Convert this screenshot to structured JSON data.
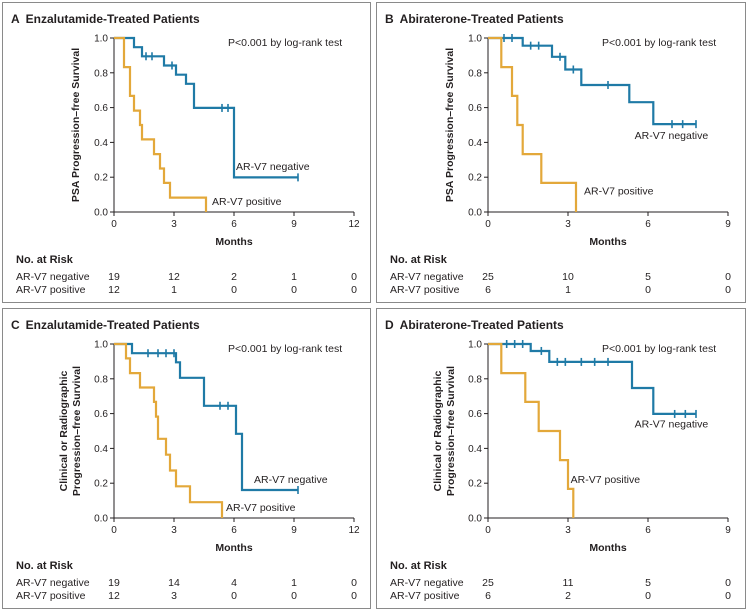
{
  "colors": {
    "negative": "#1f7aa6",
    "positive": "#e3a83a",
    "axis": "#231f20"
  },
  "risk_header": "No. at Risk",
  "chart_data": [
    {
      "id": "A",
      "type": "line",
      "step": true,
      "letter": "A",
      "title": "Enzalutamide-Treated Patients",
      "annotation": "P<0.001 by log-rank test",
      "ylabel": [
        "PSA Progression–free Survival"
      ],
      "xlabel": "Months",
      "xlim": [
        0,
        12
      ],
      "ylim": [
        0,
        1.0
      ],
      "xticks": [
        0,
        3,
        6,
        9,
        12
      ],
      "yticks": [
        "0.0",
        "0.2",
        "0.4",
        "0.6",
        "0.8",
        "1.0"
      ],
      "series": [
        {
          "name": "AR-V7 negative",
          "color_key": "negative",
          "points": [
            [
              0,
              1.0
            ],
            [
              1.0,
              1.0
            ],
            [
              1.0,
              0.947
            ],
            [
              1.4,
              0.947
            ],
            [
              1.4,
              0.895
            ],
            [
              2.5,
              0.895
            ],
            [
              2.5,
              0.842
            ],
            [
              3.1,
              0.842
            ],
            [
              3.1,
              0.789
            ],
            [
              3.6,
              0.789
            ],
            [
              3.6,
              0.737
            ],
            [
              4.0,
              0.737
            ],
            [
              4.0,
              0.598
            ],
            [
              6.0,
              0.598
            ],
            [
              6.0,
              0.199
            ],
            [
              9.2,
              0.199
            ]
          ],
          "censors": [
            [
              1.6,
              0.895
            ],
            [
              1.9,
              0.895
            ],
            [
              2.9,
              0.842
            ],
            [
              5.4,
              0.598
            ],
            [
              5.7,
              0.598
            ],
            [
              9.2,
              0.199
            ]
          ],
          "label": "AR-V7 negative",
          "label_at": [
            6.1,
            0.24
          ]
        },
        {
          "name": "AR-V7 positive",
          "color_key": "positive",
          "points": [
            [
              0,
              1.0
            ],
            [
              0.5,
              1.0
            ],
            [
              0.5,
              0.833
            ],
            [
              0.8,
              0.833
            ],
            [
              0.8,
              0.667
            ],
            [
              1.0,
              0.667
            ],
            [
              1.0,
              0.583
            ],
            [
              1.3,
              0.583
            ],
            [
              1.3,
              0.5
            ],
            [
              1.4,
              0.5
            ],
            [
              1.4,
              0.417
            ],
            [
              2.0,
              0.417
            ],
            [
              2.0,
              0.333
            ],
            [
              2.3,
              0.333
            ],
            [
              2.3,
              0.25
            ],
            [
              2.5,
              0.25
            ],
            [
              2.5,
              0.167
            ],
            [
              2.8,
              0.167
            ],
            [
              2.8,
              0.083
            ],
            [
              4.6,
              0.083
            ],
            [
              4.6,
              0.0
            ]
          ],
          "censors": [],
          "label": "AR-V7 positive",
          "label_at": [
            4.9,
            0.04
          ]
        }
      ],
      "risk_times": [
        0,
        3,
        6,
        9,
        12
      ],
      "risk_rows": [
        {
          "label": "AR-V7 negative",
          "values": [
            "19",
            "12",
            "2",
            "1",
            "0"
          ]
        },
        {
          "label": "AR-V7 positive",
          "values": [
            "12",
            "1",
            "0",
            "0",
            "0"
          ]
        }
      ]
    },
    {
      "id": "B",
      "type": "line",
      "step": true,
      "letter": "B",
      "title": "Abiraterone-Treated Patients",
      "annotation": "P<0.001 by log-rank test",
      "ylabel": [
        "PSA Progression–free Survival"
      ],
      "xlabel": "Months",
      "xlim": [
        0,
        9
      ],
      "ylim": [
        0,
        1.0
      ],
      "xticks": [
        0,
        3,
        6,
        9
      ],
      "yticks": [
        "0.0",
        "0.2",
        "0.4",
        "0.6",
        "0.8",
        "1.0"
      ],
      "series": [
        {
          "name": "AR-V7 negative",
          "color_key": "negative",
          "points": [
            [
              0,
              1.0
            ],
            [
              1.3,
              1.0
            ],
            [
              1.3,
              0.956
            ],
            [
              2.4,
              0.956
            ],
            [
              2.4,
              0.892
            ],
            [
              2.9,
              0.892
            ],
            [
              2.9,
              0.819
            ],
            [
              3.5,
              0.819
            ],
            [
              3.5,
              0.73
            ],
            [
              5.3,
              0.73
            ],
            [
              5.3,
              0.631
            ],
            [
              6.2,
              0.631
            ],
            [
              6.2,
              0.505
            ],
            [
              7.8,
              0.505
            ]
          ],
          "censors": [
            [
              0.6,
              1.0
            ],
            [
              0.9,
              1.0
            ],
            [
              1.6,
              0.956
            ],
            [
              1.9,
              0.956
            ],
            [
              2.7,
              0.892
            ],
            [
              3.2,
              0.819
            ],
            [
              4.5,
              0.73
            ],
            [
              6.9,
              0.505
            ],
            [
              7.3,
              0.505
            ],
            [
              7.8,
              0.505
            ]
          ],
          "label": "AR-V7 negative",
          "label_at": [
            5.5,
            0.42
          ]
        },
        {
          "name": "AR-V7 positive",
          "color_key": "positive",
          "points": [
            [
              0,
              1.0
            ],
            [
              0.5,
              1.0
            ],
            [
              0.5,
              0.833
            ],
            [
              0.9,
              0.833
            ],
            [
              0.9,
              0.667
            ],
            [
              1.1,
              0.667
            ],
            [
              1.1,
              0.5
            ],
            [
              1.3,
              0.5
            ],
            [
              1.3,
              0.333
            ],
            [
              2.0,
              0.333
            ],
            [
              2.0,
              0.167
            ],
            [
              3.3,
              0.167
            ],
            [
              3.3,
              0.0
            ]
          ],
          "censors": [],
          "label": "AR-V7 positive",
          "label_at": [
            3.6,
            0.1
          ]
        }
      ],
      "risk_times": [
        0,
        3,
        6,
        9
      ],
      "risk_rows": [
        {
          "label": "AR-V7 negative",
          "values": [
            "25",
            "10",
            "5",
            "0"
          ]
        },
        {
          "label": "AR-V7 positive",
          "values": [
            "6",
            "1",
            "0",
            "0"
          ]
        }
      ]
    },
    {
      "id": "C",
      "type": "line",
      "step": true,
      "letter": "C",
      "title": "Enzalutamide-Treated Patients",
      "annotation": "P<0.001 by log-rank test",
      "ylabel": [
        "Clinical or Radiographic",
        "Progression–free Survival"
      ],
      "xlabel": "Months",
      "xlim": [
        0,
        12
      ],
      "ylim": [
        0,
        1.0
      ],
      "xticks": [
        0,
        3,
        6,
        9,
        12
      ],
      "yticks": [
        "0.0",
        "0.2",
        "0.4",
        "0.6",
        "0.8",
        "1.0"
      ],
      "series": [
        {
          "name": "AR-V7 negative",
          "color_key": "negative",
          "points": [
            [
              0,
              1.0
            ],
            [
              0.9,
              1.0
            ],
            [
              0.9,
              0.947
            ],
            [
              3.1,
              0.947
            ],
            [
              3.1,
              0.895
            ],
            [
              3.3,
              0.895
            ],
            [
              3.3,
              0.806
            ],
            [
              4.5,
              0.806
            ],
            [
              4.5,
              0.645
            ],
            [
              6.1,
              0.645
            ],
            [
              6.1,
              0.484
            ],
            [
              6.4,
              0.484
            ],
            [
              6.4,
              0.161
            ],
            [
              9.2,
              0.161
            ]
          ],
          "censors": [
            [
              1.7,
              0.947
            ],
            [
              2.2,
              0.947
            ],
            [
              2.6,
              0.947
            ],
            [
              3.0,
              0.947
            ],
            [
              5.3,
              0.645
            ],
            [
              5.7,
              0.645
            ],
            [
              9.2,
              0.161
            ]
          ],
          "label": "AR-V7 negative",
          "label_at": [
            7.0,
            0.2
          ]
        },
        {
          "name": "AR-V7 positive",
          "color_key": "positive",
          "points": [
            [
              0,
              1.0
            ],
            [
              0.6,
              1.0
            ],
            [
              0.6,
              0.917
            ],
            [
              0.8,
              0.917
            ],
            [
              0.8,
              0.833
            ],
            [
              1.3,
              0.833
            ],
            [
              1.3,
              0.75
            ],
            [
              2.0,
              0.75
            ],
            [
              2.0,
              0.667
            ],
            [
              2.1,
              0.667
            ],
            [
              2.1,
              0.583
            ],
            [
              2.2,
              0.583
            ],
            [
              2.2,
              0.455
            ],
            [
              2.6,
              0.455
            ],
            [
              2.6,
              0.364
            ],
            [
              2.8,
              0.364
            ],
            [
              2.8,
              0.273
            ],
            [
              3.1,
              0.273
            ],
            [
              3.1,
              0.182
            ],
            [
              3.8,
              0.182
            ],
            [
              3.8,
              0.091
            ],
            [
              5.4,
              0.091
            ],
            [
              5.4,
              0.0
            ]
          ],
          "censors": [],
          "label": "AR-V7 positive",
          "label_at": [
            5.6,
            0.04
          ]
        }
      ],
      "risk_times": [
        0,
        3,
        6,
        9,
        12
      ],
      "risk_rows": [
        {
          "label": "AR-V7 negative",
          "values": [
            "19",
            "14",
            "4",
            "1",
            "0"
          ]
        },
        {
          "label": "AR-V7 positive",
          "values": [
            "12",
            "3",
            "0",
            "0",
            "0"
          ]
        }
      ]
    },
    {
      "id": "D",
      "type": "line",
      "step": true,
      "letter": "D",
      "title": "Abiraterone-Treated Patients",
      "annotation": "P<0.001 by log-rank test",
      "ylabel": [
        "Clinical or Radiographic",
        "Progression–free Survival"
      ],
      "xlabel": "Months",
      "xlim": [
        0,
        9
      ],
      "ylim": [
        0,
        1.0
      ],
      "xticks": [
        0,
        3,
        6,
        9
      ],
      "yticks": [
        "0.0",
        "0.2",
        "0.4",
        "0.6",
        "0.8",
        "1.0"
      ],
      "series": [
        {
          "name": "AR-V7 negative",
          "color_key": "negative",
          "points": [
            [
              0,
              1.0
            ],
            [
              1.6,
              1.0
            ],
            [
              1.6,
              0.96
            ],
            [
              2.3,
              0.96
            ],
            [
              2.3,
              0.897
            ],
            [
              5.4,
              0.897
            ],
            [
              5.4,
              0.747
            ],
            [
              6.2,
              0.747
            ],
            [
              6.2,
              0.598
            ],
            [
              7.8,
              0.598
            ]
          ],
          "censors": [
            [
              0.7,
              1.0
            ],
            [
              1.0,
              1.0
            ],
            [
              1.3,
              1.0
            ],
            [
              2.0,
              0.96
            ],
            [
              2.6,
              0.897
            ],
            [
              2.9,
              0.897
            ],
            [
              3.5,
              0.897
            ],
            [
              4.0,
              0.897
            ],
            [
              4.5,
              0.897
            ],
            [
              7.0,
              0.598
            ],
            [
              7.4,
              0.598
            ],
            [
              7.8,
              0.598
            ]
          ],
          "label": "AR-V7 negative",
          "label_at": [
            5.5,
            0.52
          ]
        },
        {
          "name": "AR-V7 positive",
          "color_key": "positive",
          "points": [
            [
              0,
              1.0
            ],
            [
              0.5,
              1.0
            ],
            [
              0.5,
              0.833
            ],
            [
              1.4,
              0.833
            ],
            [
              1.4,
              0.667
            ],
            [
              1.9,
              0.667
            ],
            [
              1.9,
              0.5
            ],
            [
              2.7,
              0.5
            ],
            [
              2.7,
              0.333
            ],
            [
              3.0,
              0.333
            ],
            [
              3.0,
              0.167
            ],
            [
              3.2,
              0.167
            ],
            [
              3.2,
              0.0
            ]
          ],
          "censors": [],
          "label": "AR-V7 positive",
          "label_at": [
            3.1,
            0.2
          ]
        }
      ],
      "risk_times": [
        0,
        3,
        6,
        9
      ],
      "risk_rows": [
        {
          "label": "AR-V7 negative",
          "values": [
            "25",
            "11",
            "5",
            "0"
          ]
        },
        {
          "label": "AR-V7 positive",
          "values": [
            "6",
            "2",
            "0",
            "0"
          ]
        }
      ]
    }
  ]
}
